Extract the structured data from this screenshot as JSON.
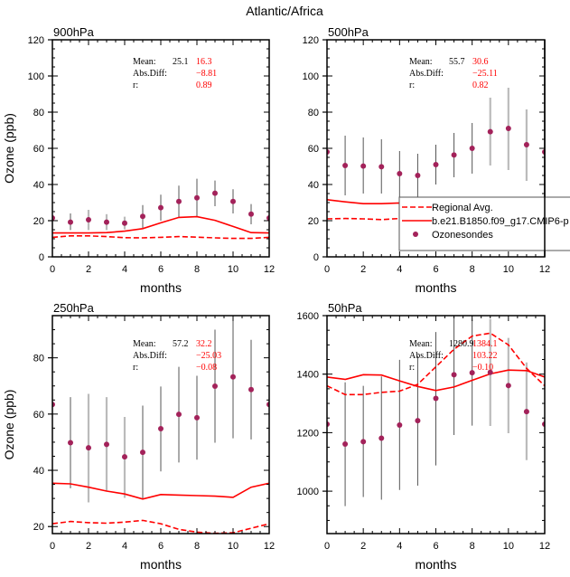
{
  "chart_data": {
    "type": "line",
    "title": "Atlantic/Africa",
    "colors": {
      "model": "#ff0000",
      "obs_marker": "#a3225a",
      "err_dark": "#555555",
      "err_light": "#bbbbbb",
      "stat_label": "#000000",
      "stat_value": "#ff0000"
    },
    "legend": {
      "placement": "bottom-right of 500hPa panel",
      "entries": [
        {
          "label": "Regional Avg.",
          "style": "dashed"
        },
        {
          "label": "b.e21.B1850.f09_g17.CMIP6-p",
          "style": "solid"
        },
        {
          "label": "Ozonesondes",
          "style": "marker"
        }
      ]
    },
    "panels": [
      {
        "name": "900hPa",
        "label": "900hPa",
        "xlabel": "months",
        "ylabel": "Ozone (ppb)",
        "xlim": [
          0,
          12
        ],
        "ylim": [
          0,
          120
        ],
        "xticks": [
          0,
          2,
          4,
          6,
          8,
          10,
          12
        ],
        "yticks": [
          0,
          20,
          40,
          60,
          80,
          100,
          120
        ],
        "x": [
          0,
          1,
          2,
          3,
          4,
          5,
          6,
          7,
          8,
          9,
          10,
          11,
          12
        ],
        "series": [
          {
            "name": "Regional Avg.",
            "style": "dashed",
            "values": [
              10.8,
              11.6,
              11.6,
              11.2,
              10.6,
              10.5,
              10.8,
              11.2,
              10.9,
              10.5,
              10.2,
              10.2,
              10.8
            ]
          },
          {
            "name": "b.e21.B1850.f09_g17.CMIP6-p",
            "style": "solid",
            "values": [
              13.2,
              13.2,
              13.2,
              13.4,
              14.2,
              15.6,
              18.8,
              21.8,
              22.2,
              20.2,
              16.8,
              13.4,
              13.2
            ]
          },
          {
            "name": "Ozonesondes",
            "style": "marker",
            "values": [
              21.5,
              19.2,
              20.5,
              19.2,
              18.6,
              22.4,
              27.2,
              30.6,
              32.6,
              35.2,
              30.6,
              23.6,
              21.5
            ],
            "err_low": [
              null,
              14.8,
              14.8,
              14.8,
              15.2,
              16.0,
              20.0,
              21.6,
              21.8,
              28.0,
              24.0,
              18.0,
              null
            ],
            "err_high": [
              null,
              24.0,
              26.0,
              23.6,
              22.2,
              28.6,
              34.4,
              39.4,
              43.2,
              42.2,
              37.4,
              29.2,
              null
            ],
            "err_shade": [
              null,
              "dark",
              "light",
              "light",
              "light",
              "dark",
              "dark",
              "dark",
              "dark",
              "dark",
              "dark",
              "dark",
              null
            ]
          }
        ],
        "stats": {
          "mean_label": "Mean:",
          "mean_obs": "25.1",
          "mean_model": "16.3",
          "absdiff_label": "Abs.Diff:",
          "absdiff": "−8.81",
          "r_label": "r:",
          "r": "0.89"
        }
      },
      {
        "name": "500hPa",
        "label": "500hPa",
        "xlabel": "months",
        "ylabel": "",
        "xlim": [
          0,
          12
        ],
        "ylim": [
          0,
          120
        ],
        "xticks": [
          0,
          2,
          4,
          6,
          8,
          10,
          12
        ],
        "yticks": [
          0,
          20,
          40,
          60,
          80,
          100,
          120
        ],
        "x": [
          0,
          1,
          2,
          3,
          4,
          5,
          6,
          7,
          8,
          9,
          10,
          11,
          12
        ],
        "series": [
          {
            "name": "Regional Avg.",
            "style": "dashed",
            "values": [
              21.0,
              21.2,
              21.0,
              20.6,
              21.2,
              21.6,
              21.0,
              19.6,
              19.0,
              18.6,
              18.6,
              19.6,
              21.0
            ]
          },
          {
            "name": "b.e21.B1850.f09_g17.CMIP6-p",
            "style": "solid",
            "values": [
              31.6,
              30.4,
              29.4,
              29.4,
              29.8,
              28.4,
              30.0,
              31.4,
              31.8,
              31.8,
              31.4,
              31.6,
              31.6
            ]
          },
          {
            "name": "Ozonesondes",
            "style": "marker",
            "values": [
              58.0,
              50.5,
              50.2,
              49.8,
              46.0,
              45.0,
              51.0,
              56.3,
              60.0,
              69.2,
              71.0,
              62.0,
              58.0
            ],
            "err_low": [
              null,
              34.0,
              35.0,
              35.0,
              33.0,
              32.0,
              40.0,
              44.0,
              46.0,
              50.5,
              48.0,
              42.0,
              null
            ],
            "err_high": [
              null,
              67.0,
              66.0,
              65.0,
              58.5,
              57.0,
              62.0,
              68.5,
              74.0,
              88.0,
              93.5,
              81.5,
              null
            ],
            "err_shade": [
              null,
              "dark",
              "dark",
              "dark",
              "dark",
              "dark",
              "dark",
              "dark",
              "dark",
              "light",
              "light",
              "light",
              null
            ]
          }
        ],
        "stats": {
          "mean_label": "Mean:",
          "mean_obs": "55.7",
          "mean_model": "30.6",
          "absdiff_label": "Abs.Diff:",
          "absdiff": "−25.11",
          "r_label": "r:",
          "r": "0.82"
        }
      },
      {
        "name": "250hPa",
        "label": "250hPa",
        "xlabel": "months",
        "ylabel": "Ozone (ppb)",
        "xlim": [
          0,
          12
        ],
        "ylim": [
          17.5,
          95
        ],
        "xticks": [
          0,
          2,
          4,
          6,
          8,
          10,
          12
        ],
        "yticks": [
          20,
          40,
          60,
          80
        ],
        "x": [
          0,
          1,
          2,
          3,
          4,
          5,
          6,
          7,
          8,
          9,
          10,
          11,
          12
        ],
        "series": [
          {
            "name": "Regional Avg.",
            "style": "dashed",
            "values": [
              21.0,
              21.8,
              21.4,
              21.2,
              21.6,
              22.2,
              21.0,
              19.0,
              18.0,
              17.6,
              17.8,
              19.4,
              21.0
            ]
          },
          {
            "name": "b.e21.B1850.f09_g17.CMIP6-p",
            "style": "solid",
            "values": [
              35.4,
              35.2,
              34.0,
              32.6,
              31.6,
              29.8,
              31.4,
              31.2,
              31.0,
              30.8,
              30.4,
              34.0,
              35.4
            ]
          },
          {
            "name": "Ozonesondes",
            "style": "marker",
            "values": [
              63.4,
              49.8,
              48.0,
              49.2,
              44.8,
              46.4,
              54.8,
              59.9,
              58.7,
              69.9,
              73.2,
              68.7,
              63.4
            ],
            "err_low": [
              null,
              33.6,
              28.6,
              32.8,
              30.2,
              29.8,
              39.6,
              42.8,
              43.8,
              49.8,
              51.4,
              51.0,
              null
            ],
            "err_high": [
              null,
              66.0,
              67.2,
              66.0,
              59.0,
              63.0,
              69.8,
              76.8,
              73.6,
              90.0,
              95.0,
              86.4,
              null
            ],
            "err_shade": [
              null,
              "dark",
              "light",
              "light",
              "light",
              "dark",
              "dark",
              "dark",
              "dark",
              "dark",
              "dark",
              "dark",
              null
            ]
          }
        ],
        "stats": {
          "mean_label": "Mean:",
          "mean_obs": "57.2",
          "mean_model": "32.2",
          "absdiff_label": "Abs.Diff:",
          "absdiff": "−25.03",
          "r_label": "r:",
          "r": "−0.08"
        }
      },
      {
        "name": "50hPa",
        "label": "50hPa",
        "xlabel": "months",
        "ylabel": "",
        "xlim": [
          0,
          12
        ],
        "ylim": [
          855,
          1600
        ],
        "xticks": [
          0,
          2,
          4,
          6,
          8,
          10,
          12
        ],
        "yticks": [
          1000,
          1200,
          1400,
          1600
        ],
        "x": [
          0,
          1,
          2,
          3,
          4,
          5,
          6,
          7,
          8,
          9,
          10,
          11,
          12
        ],
        "series": [
          {
            "name": "Regional Avg.",
            "style": "dashed",
            "values": [
              1360,
              1330,
              1330,
              1338,
              1342,
              1365,
              1425,
              1485,
              1530,
              1540,
              1500,
              1420,
              1360
            ]
          },
          {
            "name": "b.e21.B1850.f09_g17.CMIP6-p",
            "style": "solid",
            "values": [
              1390,
              1382,
              1398,
              1397,
              1377,
              1358,
              1344,
              1356,
              1379,
              1401,
              1414,
              1412,
              1390
            ]
          },
          {
            "name": "Ozonesondes",
            "style": "marker",
            "values": [
              1229,
              1161,
              1169,
              1181,
              1226,
              1241,
              1317,
              1398,
              1405,
              1406,
              1361,
              1272,
              1229
            ],
            "err_low": [
              null,
              949,
              980,
              971,
              1004,
              1019,
              1088,
              1192,
              1224,
              1223,
              1198,
              1106,
              null
            ],
            "err_high": [
              null,
              1372,
              1360,
              1392,
              1449,
              1463,
              1544,
              1610,
              1586,
              1588,
              1524,
              1440,
              null
            ],
            "err_shade": [
              null,
              "dark",
              "dark",
              "dark",
              "dark",
              "dark",
              "dark",
              "dark",
              "dark",
              "light",
              "light",
              "light",
              null
            ]
          }
        ],
        "stats": {
          "mean_label": "Mean:",
          "mean_obs": "1280.9",
          "mean_model": "1384.1",
          "absdiff_label": "Abs.Diff:",
          "absdiff": "103.22",
          "r_label": "r:",
          "r": "−0.10"
        }
      }
    ]
  }
}
